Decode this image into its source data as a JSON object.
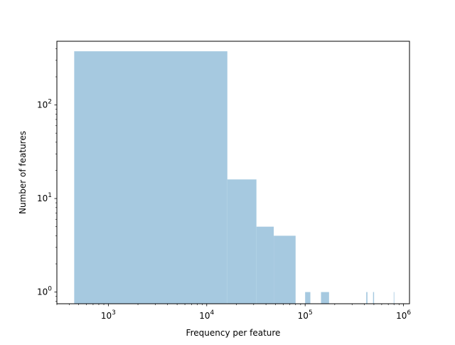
{
  "chart_data": {
    "type": "bar",
    "title": "",
    "xlabel": "Frequency per feature",
    "ylabel": "Number of features",
    "xscale": "log",
    "yscale": "log",
    "xlim": [
      300,
      1150000
    ],
    "ylim": [
      0.75,
      480
    ],
    "grid": false,
    "bar_color": "#a6c9e0",
    "x_ticks": [
      {
        "value": 1000,
        "mantissa": "10",
        "exp": "3"
      },
      {
        "value": 10000,
        "mantissa": "10",
        "exp": "4"
      },
      {
        "value": 100000,
        "mantissa": "10",
        "exp": "5"
      },
      {
        "value": 1000000,
        "mantissa": "10",
        "exp": "6"
      }
    ],
    "y_ticks": [
      {
        "value": 1,
        "mantissa": "10",
        "exp": "0"
      },
      {
        "value": 10,
        "mantissa": "10",
        "exp": "1"
      },
      {
        "value": 100,
        "mantissa": "10",
        "exp": "2"
      }
    ],
    "bins": [
      {
        "x0": 450,
        "x1": 16200,
        "count": 375
      },
      {
        "x0": 16200,
        "x1": 32000,
        "count": 16
      },
      {
        "x0": 32000,
        "x1": 48000,
        "count": 5
      },
      {
        "x0": 48000,
        "x1": 80000,
        "count": 4
      },
      {
        "x0": 100000,
        "x1": 113000,
        "count": 1
      },
      {
        "x0": 145000,
        "x1": 175000,
        "count": 1
      },
      {
        "x0": 418000,
        "x1": 430000,
        "count": 1
      },
      {
        "x0": 490000,
        "x1": 502000,
        "count": 1
      },
      {
        "x0": 795000,
        "x1": 803000,
        "count": 1
      }
    ]
  }
}
